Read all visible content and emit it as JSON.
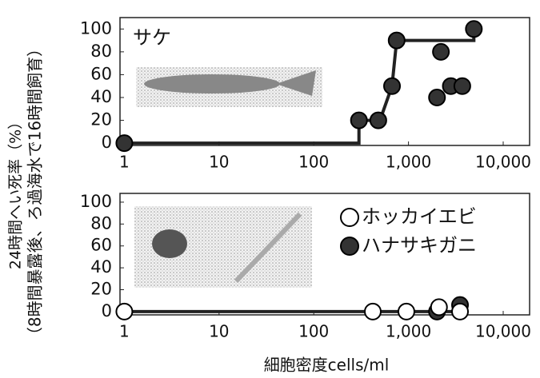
{
  "chart_data": [
    {
      "type": "scatter",
      "title": "サケ",
      "xscale": "log",
      "ylabel": [
        "24時間へい死率（%）",
        "（8時間暴露後、ろ過海水で16時間飼育）"
      ],
      "xlim": [
        0.9,
        19000
      ],
      "xticks": [
        1,
        10,
        100,
        {
          "value": 1000,
          "label": "1,000"
        },
        {
          "value": 10000,
          "label": "10,000"
        }
      ],
      "ylim": [
        -2,
        110
      ],
      "yticks": [
        0,
        20,
        40,
        60,
        80,
        100
      ],
      "series": [
        {
          "style": "line",
          "color": "#222222",
          "x": [
            1,
            300,
            300,
            500,
            670,
            750,
            4900,
            4900
          ],
          "values": [
            0,
            0,
            20,
            20,
            50,
            90,
            90,
            100
          ]
        },
        {
          "style": "filled",
          "color": "#333333",
          "x": [
            1,
            300,
            480,
            670,
            750,
            2000,
            2200,
            2800,
            3700,
            4900
          ],
          "values": [
            0,
            20,
            20,
            50,
            90,
            40,
            80,
            50,
            50,
            100
          ]
        }
      ]
    },
    {
      "type": "scatter",
      "xscale": "log",
      "xlabel": "細胞密度cells/ml",
      "xlim": [
        0.9,
        19000
      ],
      "xticks": [
        1,
        10,
        100,
        {
          "value": 1000,
          "label": "1,000"
        },
        {
          "value": 10000,
          "label": "10,000"
        }
      ],
      "ylim": [
        -3,
        108
      ],
      "yticks": [
        0,
        20,
        40,
        60,
        80,
        100
      ],
      "series": [
        {
          "style": "line",
          "color": "#222222",
          "x": [
            1,
            3500
          ],
          "values": [
            0,
            0
          ]
        },
        {
          "name": "ハナサキガニ",
          "style": "filled",
          "color": "#333333",
          "x": [
            2000,
            3500
          ],
          "values": [
            0,
            6
          ]
        },
        {
          "name": "ホッカイエビ",
          "style": "open",
          "color": "#ffffff",
          "x": [
            1,
            420,
            950,
            2100,
            3500
          ],
          "values": [
            0,
            0,
            0,
            4,
            0
          ]
        }
      ]
    }
  ]
}
